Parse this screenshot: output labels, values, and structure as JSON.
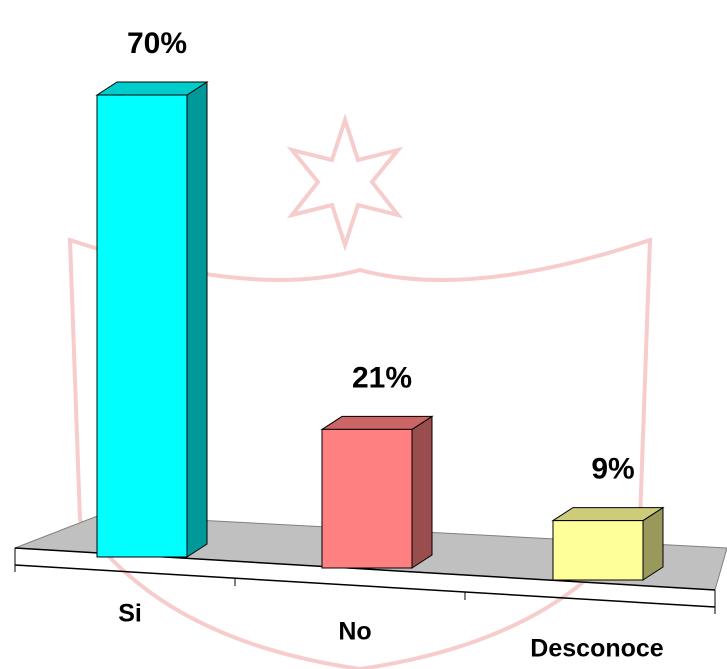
{
  "chart_data": {
    "type": "bar3d",
    "categories": [
      "Si",
      "No",
      "Desconoce"
    ],
    "values": [
      70,
      21,
      9
    ],
    "value_labels": [
      "70%",
      "21%",
      "9%"
    ],
    "colors": [
      "#00ffff",
      "#ff8080",
      "#ffff99"
    ]
  }
}
